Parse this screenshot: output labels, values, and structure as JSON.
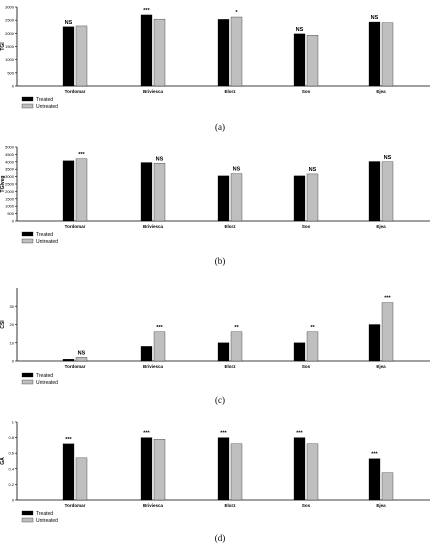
{
  "chart_data": [
    {
      "type": "bar",
      "caption": "(a)",
      "ylabel": "TGI",
      "ylim": [
        0,
        3000
      ],
      "yticks": [
        0,
        500,
        1000,
        1500,
        2000,
        2500,
        3000
      ],
      "categories": [
        "Tordomar",
        "Briviesca",
        "Elorz",
        "Sos",
        "Ejea"
      ],
      "series": [
        {
          "name": "Treated",
          "color": "#000000",
          "values": [
            2250,
            2700,
            2530,
            1980,
            2430
          ]
        },
        {
          "name": "Untreated",
          "color": "#bfbfbf",
          "values": [
            2280,
            2540,
            2620,
            1930,
            2400
          ]
        }
      ],
      "annotations": [
        {
          "category": "Tordomar",
          "series": "Treated",
          "label": "NS"
        },
        {
          "category": "Briviesca",
          "series": "Treated",
          "label": "***"
        },
        {
          "category": "Elorz",
          "series": "Untreated",
          "label": "*"
        },
        {
          "category": "Sos",
          "series": "Treated",
          "label": "NS"
        },
        {
          "category": "Ejea",
          "series": "Treated",
          "label": "NS"
        }
      ],
      "legend_position": "bottom-left"
    },
    {
      "type": "bar",
      "caption": "(b)",
      "ylabel": "TGIveg",
      "ylim": [
        0,
        5000
      ],
      "yticks": [
        0,
        500,
        1000,
        1500,
        2000,
        2500,
        3000,
        3500,
        4000,
        4500,
        5000
      ],
      "categories": [
        "Tordomar",
        "Briviesca",
        "Elorz",
        "Sos",
        "Ejea"
      ],
      "series": [
        {
          "name": "Treated",
          "color": "#000000",
          "values": [
            4070,
            3950,
            3050,
            3050,
            4020
          ]
        },
        {
          "name": "Untreated",
          "color": "#bfbfbf",
          "values": [
            4200,
            3900,
            3200,
            3180,
            4000
          ]
        }
      ],
      "annotations": [
        {
          "category": "Tordomar",
          "series": "Untreated",
          "label": "***"
        },
        {
          "category": "Briviesca",
          "series": "Untreated",
          "label": "NS"
        },
        {
          "category": "Elorz",
          "series": "Untreated",
          "label": "NS"
        },
        {
          "category": "Sos",
          "series": "Untreated",
          "label": "NS"
        },
        {
          "category": "Ejea",
          "series": "Untreated",
          "label": "NS"
        }
      ],
      "legend_position": "bottom-left"
    },
    {
      "type": "bar",
      "caption": "(c)",
      "ylabel": "CSI",
      "ylim": [
        0,
        40
      ],
      "yticks": [
        0,
        10,
        20,
        30
      ],
      "categories": [
        "Tordomar",
        "Briviesca",
        "Elorz",
        "Sos",
        "Ejea"
      ],
      "series": [
        {
          "name": "Treated",
          "color": "#000000",
          "values": [
            1,
            8,
            10,
            10,
            20
          ]
        },
        {
          "name": "Untreated",
          "color": "#bfbfbf",
          "values": [
            2,
            16,
            16,
            16,
            32
          ]
        }
      ],
      "annotations": [
        {
          "category": "Tordomar",
          "series": "Untreated",
          "label": "NS"
        },
        {
          "category": "Briviesca",
          "series": "Untreated",
          "label": "***"
        },
        {
          "category": "Elorz",
          "series": "Untreated",
          "label": "**"
        },
        {
          "category": "Sos",
          "series": "Untreated",
          "label": "**"
        },
        {
          "category": "Ejea",
          "series": "Untreated",
          "label": "***"
        }
      ],
      "legend_position": "bottom-left"
    },
    {
      "type": "bar",
      "caption": "(d)",
      "ylabel": "GA",
      "ylim": [
        0,
        1
      ],
      "yticks": [
        0,
        0.2,
        0.4,
        0.6,
        0.8,
        1
      ],
      "categories": [
        "Tordomar",
        "Briviesca",
        "Elorz",
        "Sos",
        "Ejea"
      ],
      "series": [
        {
          "name": "Treated",
          "color": "#000000",
          "values": [
            0.72,
            0.8,
            0.8,
            0.8,
            0.53
          ]
        },
        {
          "name": "Untreated",
          "color": "#bfbfbf",
          "values": [
            0.54,
            0.78,
            0.72,
            0.72,
            0.35
          ]
        }
      ],
      "annotations": [
        {
          "category": "Tordomar",
          "series": "Treated",
          "label": "***"
        },
        {
          "category": "Briviesca",
          "series": "Treated",
          "label": "***"
        },
        {
          "category": "Elorz",
          "series": "Treated",
          "label": "***"
        },
        {
          "category": "Sos",
          "series": "Treated",
          "label": "***"
        },
        {
          "category": "Ejea",
          "series": "Treated",
          "label": "***"
        }
      ],
      "legend_position": "bottom-left"
    }
  ]
}
